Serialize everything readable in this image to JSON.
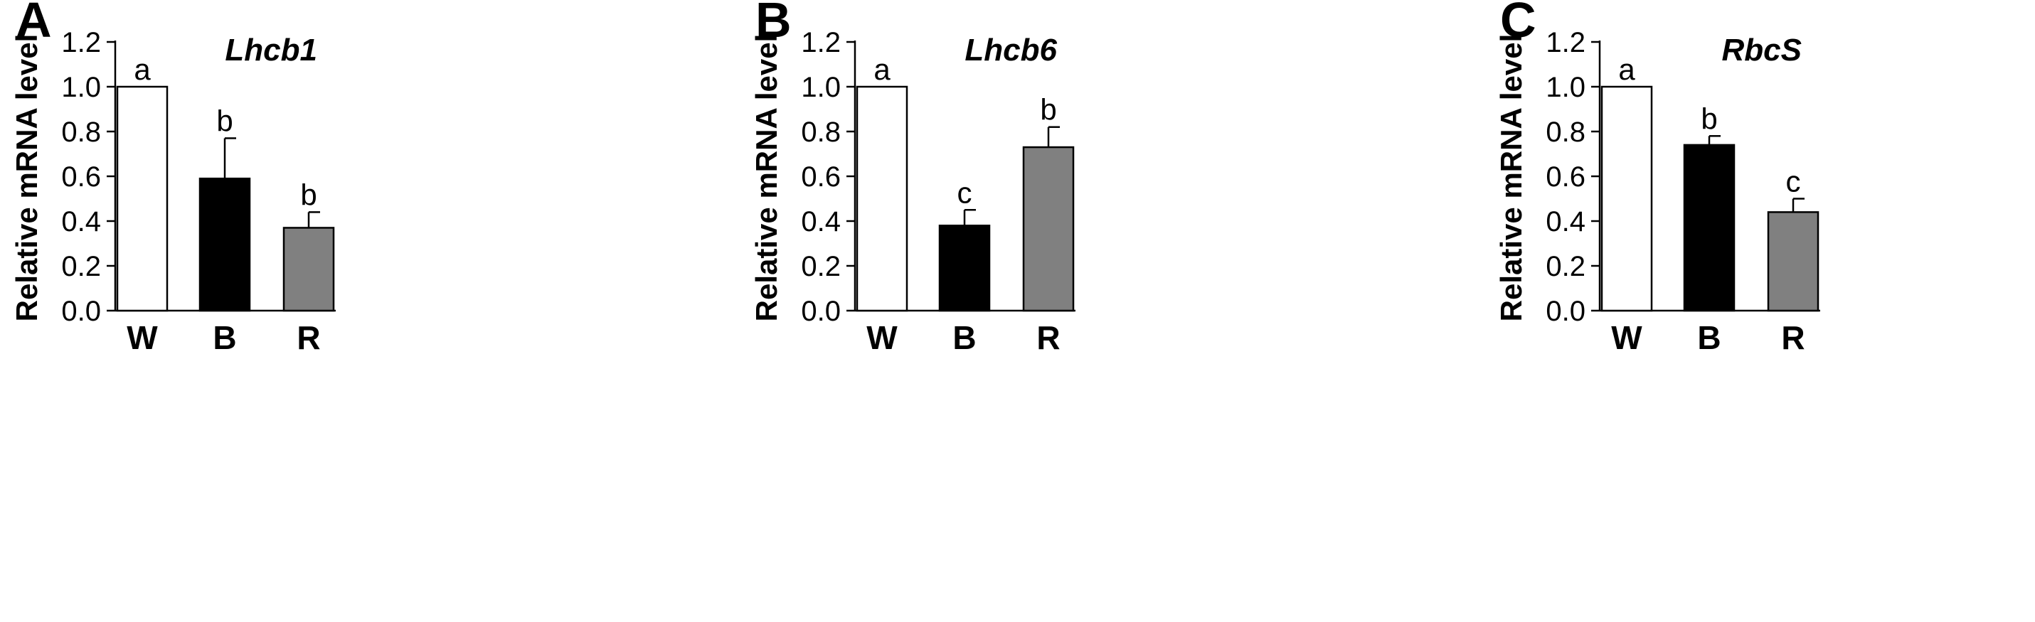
{
  "chart_data": [
    {
      "type": "bar",
      "panel": "A",
      "gene": "Lhcb1",
      "ylabel": "Relative mRNA level",
      "ylim": [
        0,
        1.2
      ],
      "yticks": [
        "0.0",
        "0.2",
        "0.4",
        "0.6",
        "0.8",
        "1.0",
        "1.2"
      ],
      "categories": [
        "W",
        "B",
        "R"
      ],
      "values": [
        1.0,
        0.59,
        0.37
      ],
      "errors": [
        0,
        0.18,
        0.07
      ],
      "significance": [
        "a",
        "b",
        "b"
      ],
      "colors": [
        "#ffffff",
        "#000000",
        "#808080"
      ]
    },
    {
      "type": "bar",
      "panel": "B",
      "gene": "Lhcb6",
      "ylabel": "Relative mRNA level",
      "ylim": [
        0,
        1.2
      ],
      "yticks": [
        "0.0",
        "0.2",
        "0.4",
        "0.6",
        "0.8",
        "1.0",
        "1.2"
      ],
      "categories": [
        "W",
        "B",
        "R"
      ],
      "values": [
        1.0,
        0.38,
        0.73
      ],
      "errors": [
        0,
        0.07,
        0.09
      ],
      "significance": [
        "a",
        "c",
        "b"
      ],
      "colors": [
        "#ffffff",
        "#000000",
        "#808080"
      ]
    },
    {
      "type": "bar",
      "panel": "C",
      "gene": "RbcS",
      "ylabel": "Relative mRNA level",
      "ylim": [
        0,
        1.2
      ],
      "yticks": [
        "0.0",
        "0.2",
        "0.4",
        "0.6",
        "0.8",
        "1.0",
        "1.2"
      ],
      "categories": [
        "W",
        "B",
        "R"
      ],
      "values": [
        1.0,
        0.74,
        0.44
      ],
      "errors": [
        0,
        0.04,
        0.06
      ],
      "significance": [
        "a",
        "b",
        "c"
      ],
      "colors": [
        "#ffffff",
        "#000000",
        "#808080"
      ]
    }
  ]
}
